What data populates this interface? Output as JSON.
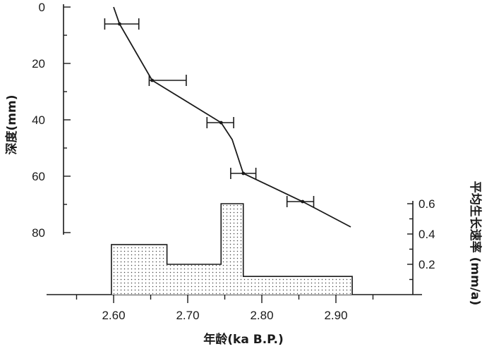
{
  "chart_data": [
    {
      "type": "line",
      "x": [
        2.6,
        2.608,
        2.652,
        2.745,
        2.76,
        2.775,
        2.855,
        2.92
      ],
      "y": [
        0,
        6,
        26,
        41,
        47,
        59,
        69,
        78
      ],
      "error_points": [
        {
          "x": 2.608,
          "y": 6,
          "xerr_low": 2.588,
          "xerr_high": 2.634
        },
        {
          "x": 2.652,
          "y": 26,
          "xerr_low": 2.648,
          "xerr_high": 2.698
        },
        {
          "x": 2.745,
          "y": 41,
          "xerr_low": 2.726,
          "xerr_high": 2.762
        },
        {
          "x": 2.775,
          "y": 59,
          "xerr_low": 2.758,
          "xerr_high": 2.792
        },
        {
          "x": 2.855,
          "y": 69,
          "xerr_low": 2.834,
          "xerr_high": 2.87
        }
      ],
      "ylabel": "深度(mm)",
      "xlabel": "年龄(ka B.P.)",
      "xlim": [
        2.55,
        2.95
      ],
      "ylim": [
        0,
        80
      ],
      "y_inverted": true,
      "y_ticks": [
        "0",
        "20",
        "40",
        "60",
        "80"
      ],
      "x_ticks": [
        "2.60",
        "2.70",
        "2.80",
        "2.90"
      ],
      "grid": false
    },
    {
      "type": "bar",
      "style": "step-histogram",
      "categories": [
        "2.597-2.672",
        "2.672-2.745",
        "2.745-2.775",
        "2.775-2.922"
      ],
      "bins": [
        [
          2.597,
          2.672
        ],
        [
          2.672,
          2.745
        ],
        [
          2.745,
          2.775
        ],
        [
          2.775,
          2.922
        ]
      ],
      "values": [
        0.33,
        0.2,
        0.6,
        0.12
      ],
      "ylabel": "平均生长速率 (mm/a)",
      "ylim": [
        0,
        0.65
      ],
      "y_ticks": [
        "0.2",
        "0.4",
        "0.6"
      ],
      "fill": "dotted"
    }
  ]
}
